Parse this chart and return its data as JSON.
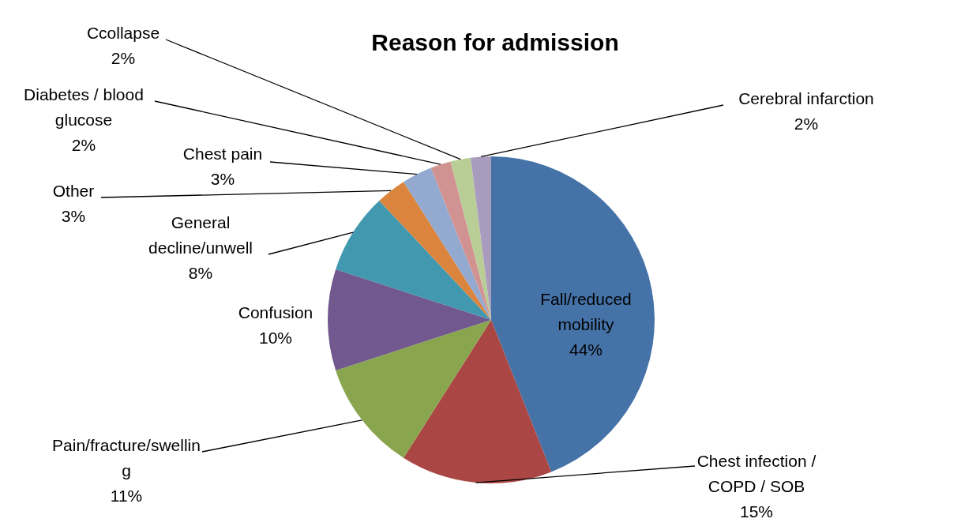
{
  "chart_data": {
    "type": "pie",
    "title": "Reason for admission",
    "categories": [
      "Fall/reduced mobility",
      "Chest infection / COPD / SOB",
      "Pain/fracture/swelling",
      "Confusion",
      "General decline/unwell",
      "Other",
      "Chest pain",
      "Diabetes / blood glucose",
      "Ccollapse",
      "Cerebral infarction"
    ],
    "values": [
      44,
      15,
      11,
      10,
      8,
      3,
      3,
      2,
      2,
      2
    ],
    "value_labels": [
      "44%",
      "15%",
      "11%",
      "10%",
      "8%",
      "3%",
      "3%",
      "2%",
      "2%",
      "2%"
    ],
    "colors": [
      "#4572a7",
      "#aa4643",
      "#89a54e",
      "#71588f",
      "#4198af",
      "#db843d",
      "#93a9cf",
      "#d19392",
      "#b9cd96",
      "#a99bbd"
    ],
    "legend": false
  }
}
